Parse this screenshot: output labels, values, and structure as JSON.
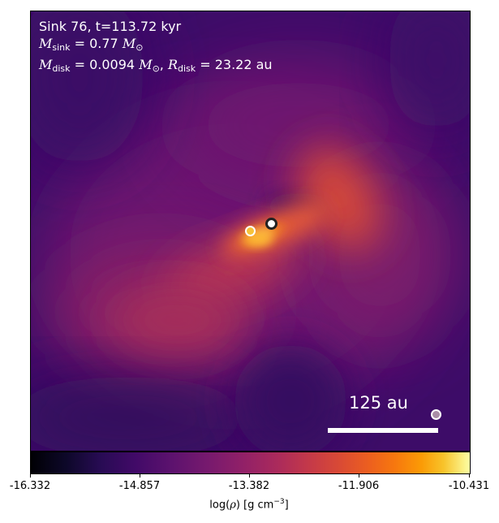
{
  "header": {
    "sink_line": "Sink 76, t=113.72 kyr",
    "msink_symbol": "M",
    "msink_sub": "sink",
    "msink_value": " = 0.77 ",
    "mdisk_symbol": "M",
    "mdisk_sub": "disk",
    "mdisk_value": " = 0.0094 ",
    "rdisk_symbol": "R",
    "rdisk_sub": "disk",
    "rdisk_value": " = 23.22 au",
    "solar_symbol": "M",
    "solar_sub": "⊙",
    "separator": ", "
  },
  "scale_bar": {
    "label": "125 au"
  },
  "sinks": [
    {
      "name": "sink-a",
      "fill": "#f6c33a",
      "stroke": "#ffffff"
    },
    {
      "name": "sink-b",
      "fill": "#ffffff",
      "stroke": "#222222"
    },
    {
      "name": "sink-c",
      "fill": "#a98ea6",
      "stroke": "#ffffff"
    }
  ],
  "colorbar": {
    "colormap": "inferno",
    "ticks": [
      "-16.332",
      "-14.857",
      "-13.382",
      "-11.906",
      "-10.431"
    ],
    "label_prefix": "log(",
    "label_symbol": "ρ",
    "label_suffix": ") [g cm",
    "label_exp": "−3",
    "label_end": "]"
  }
}
